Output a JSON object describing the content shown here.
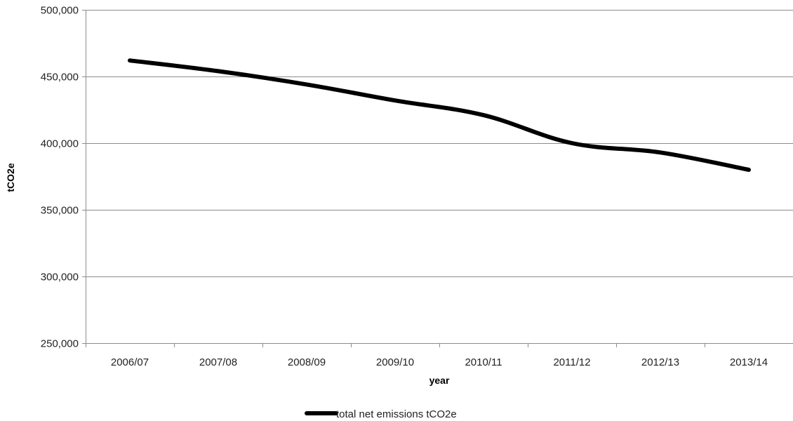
{
  "chart_data": {
    "type": "line",
    "categories": [
      "2006/07",
      "2007/08",
      "2008/09",
      "2009/10",
      "2010/11",
      "2011/12",
      "2012/13",
      "2013/14"
    ],
    "series": [
      {
        "name": "total net emissions tCO2e",
        "values": [
          462000,
          454000,
          444000,
          432000,
          421000,
          400000,
          393000,
          380000
        ],
        "color": "#000000"
      }
    ],
    "xlabel": "year",
    "ylabel": "tCO2e",
    "ylim": [
      250000,
      500000
    ],
    "yticks": [
      250000,
      300000,
      350000,
      400000,
      450000,
      500000
    ],
    "ytick_labels": [
      "250,000",
      "300,000",
      "350,000",
      "400,000",
      "450,000",
      "500,000"
    ],
    "grid": "horizontal",
    "legend_position": "bottom",
    "line_style": "smooth"
  }
}
